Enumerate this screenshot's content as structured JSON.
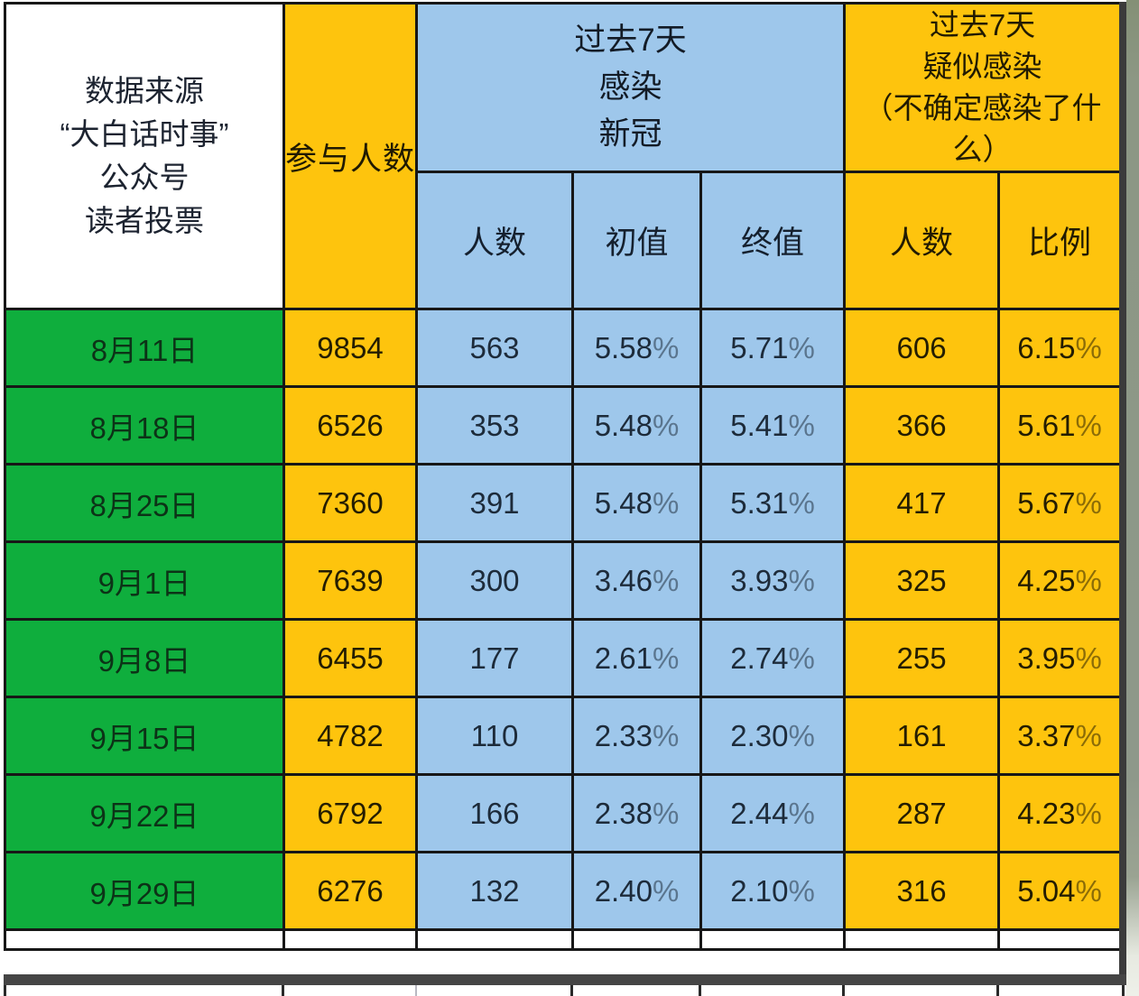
{
  "chart_data": {
    "type": "table",
    "corner_header": {
      "lines": [
        "数据来源",
        "“大白话时事”",
        "公众号",
        "读者投票"
      ]
    },
    "columns": {
      "participants_label": "参与人数",
      "covid_group": {
        "title_lines": [
          "过去7天",
          "感染",
          "新冠"
        ],
        "subcolumns": [
          "人数",
          "初值",
          "终值"
        ]
      },
      "suspected_group": {
        "title_lines": [
          "过去7天",
          "疑似感染",
          "（不确定感染了什",
          "么）"
        ],
        "subcolumns": [
          "人数",
          "比例"
        ]
      }
    },
    "rows": [
      {
        "date": "8月11日",
        "participants": "9854",
        "covid_count": "563",
        "covid_initial": "5.58%",
        "covid_final": "5.71%",
        "suspected_count": "606",
        "suspected_ratio": "6.15%"
      },
      {
        "date": "8月18日",
        "participants": "6526",
        "covid_count": "353",
        "covid_initial": "5.48%",
        "covid_final": "5.41%",
        "suspected_count": "366",
        "suspected_ratio": "5.61%"
      },
      {
        "date": "8月25日",
        "participants": "7360",
        "covid_count": "391",
        "covid_initial": "5.48%",
        "covid_final": "5.31%",
        "suspected_count": "417",
        "suspected_ratio": "5.67%"
      },
      {
        "date": "9月1日",
        "participants": "7639",
        "covid_count": "300",
        "covid_initial": "3.46%",
        "covid_final": "3.93%",
        "suspected_count": "325",
        "suspected_ratio": "4.25%"
      },
      {
        "date": "9月8日",
        "participants": "6455",
        "covid_count": "177",
        "covid_initial": "2.61%",
        "covid_final": "2.74%",
        "suspected_count": "255",
        "suspected_ratio": "3.95%"
      },
      {
        "date": "9月15日",
        "participants": "4782",
        "covid_count": "110",
        "covid_initial": "2.33%",
        "covid_final": "2.30%",
        "suspected_count": "161",
        "suspected_ratio": "3.37%"
      },
      {
        "date": "9月22日",
        "participants": "6792",
        "covid_count": "166",
        "covid_initial": "2.38%",
        "covid_final": "2.44%",
        "suspected_count": "287",
        "suspected_ratio": "4.23%"
      },
      {
        "date": "9月29日",
        "participants": "6276",
        "covid_count": "132",
        "covid_initial": "2.40%",
        "covid_final": "2.10%",
        "suspected_count": "316",
        "suspected_ratio": "5.04%"
      }
    ],
    "colors": {
      "date_green": "#0fae3d",
      "amber": "#fec40d",
      "blue": "#9ec7eb",
      "header_white": "#ffffff",
      "thick_border": "#454545",
      "right_strip": "#8e988a"
    },
    "layout_hints": {
      "grid": "on",
      "column_order": [
        "date",
        "participants",
        "covid_count",
        "covid_initial",
        "covid_final",
        "suspected_count",
        "suspected_ratio"
      ]
    }
  }
}
